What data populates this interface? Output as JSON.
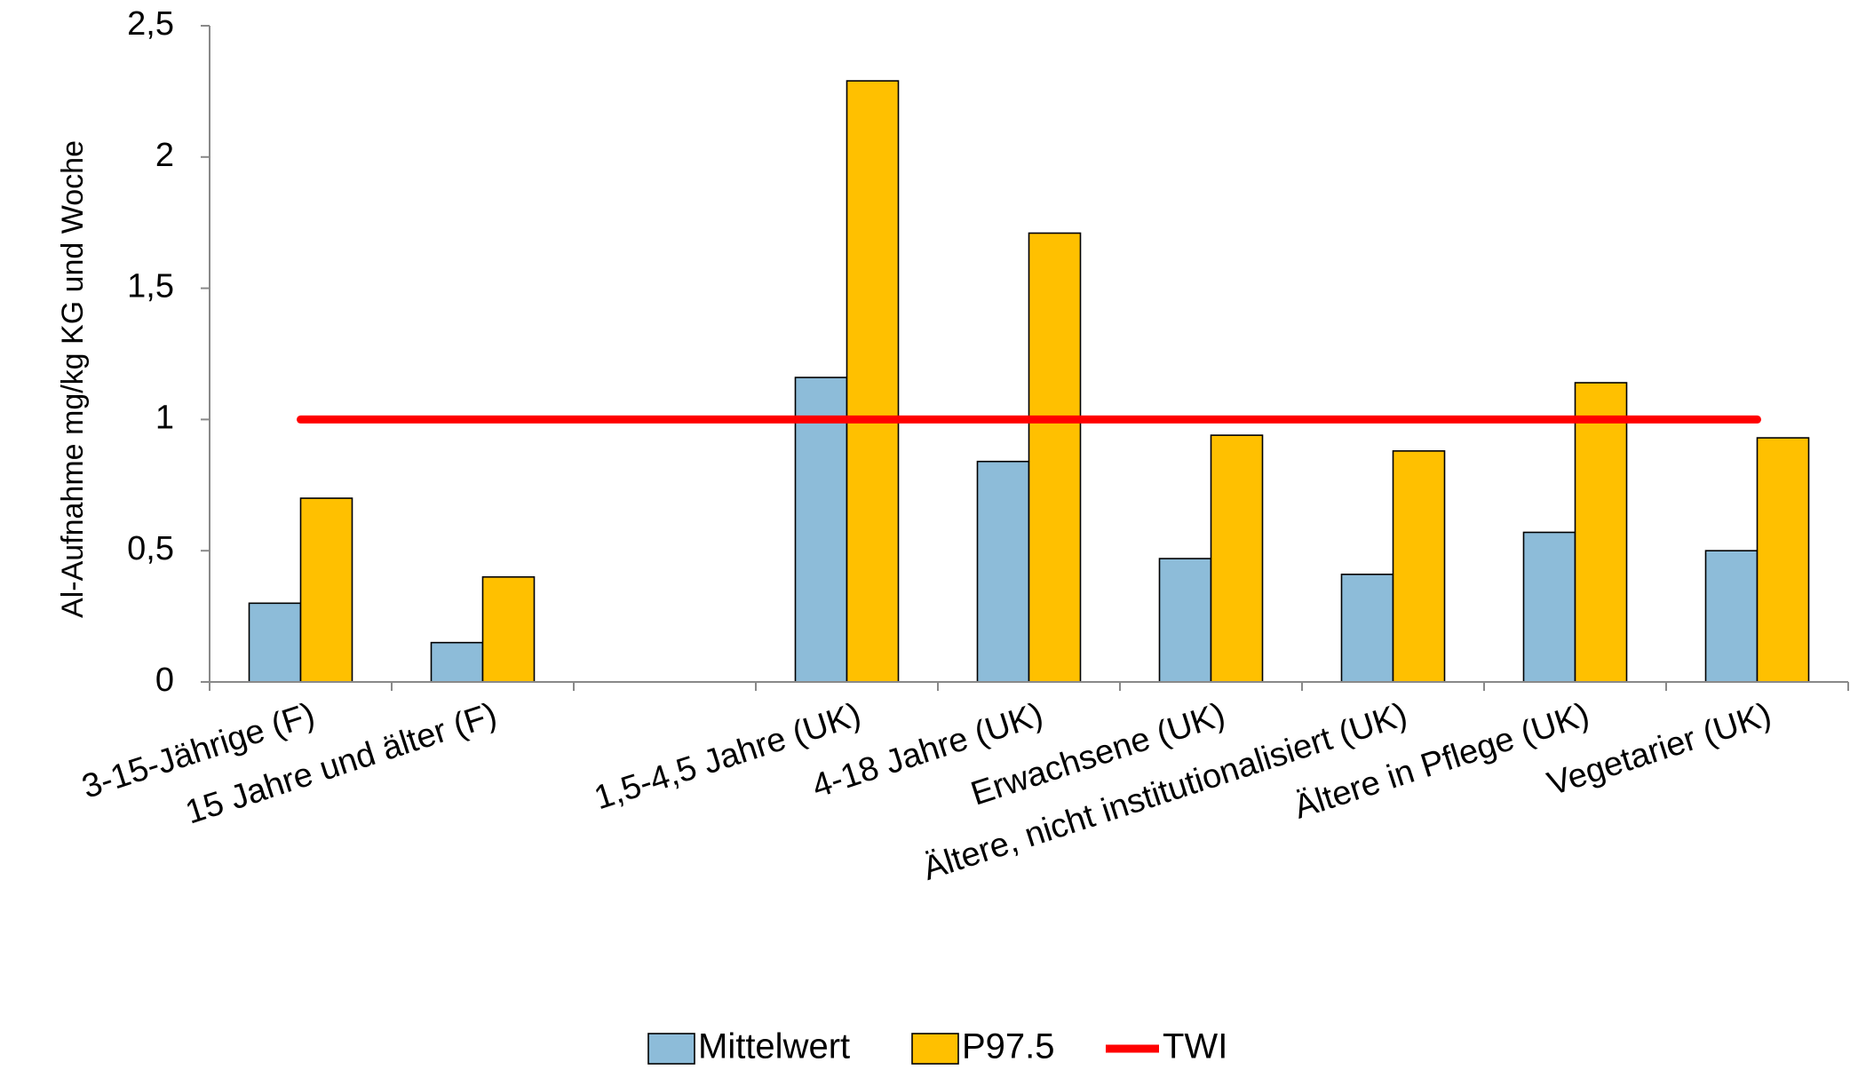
{
  "chart_data": {
    "type": "bar",
    "title": "",
    "xlabel": "",
    "ylabel": "Al-Aufnahme mg/kg KG und Woche",
    "ylim": [
      0,
      2.5
    ],
    "yticks": [
      "0",
      "0,5",
      "1",
      "1,5",
      "2",
      "2,5"
    ],
    "ytick_values": [
      0,
      0.5,
      1,
      1.5,
      2,
      2.5
    ],
    "categories": [
      "3-15-Jährige (F)",
      "15 Jahre und älter (F)",
      "",
      "1,5-4,5 Jahre (UK)",
      "4-18 Jahre (UK)",
      "Erwachsene (UK)",
      "Ältere, nicht institutionalisiert (UK)",
      "Ältere in Pflege (UK)",
      "Vegetarier (UK)"
    ],
    "series": [
      {
        "name": "Mittelwert",
        "type": "bar",
        "color": "#8DBCD9",
        "values": [
          0.3,
          0.15,
          null,
          1.16,
          0.84,
          0.47,
          0.41,
          0.57,
          0.5
        ]
      },
      {
        "name": "P97.5",
        "type": "bar",
        "color": "#FFC000",
        "values": [
          0.7,
          0.4,
          null,
          2.29,
          1.71,
          0.94,
          0.88,
          1.14,
          0.93
        ]
      },
      {
        "name": "TWI",
        "type": "line",
        "color": "#FF0000",
        "values": [
          1,
          1,
          1,
          1,
          1,
          1,
          1,
          1,
          1
        ]
      }
    ],
    "legend": {
      "position": "bottom",
      "items": [
        "Mittelwert",
        "P97.5",
        "TWI"
      ]
    },
    "grid": false
  }
}
